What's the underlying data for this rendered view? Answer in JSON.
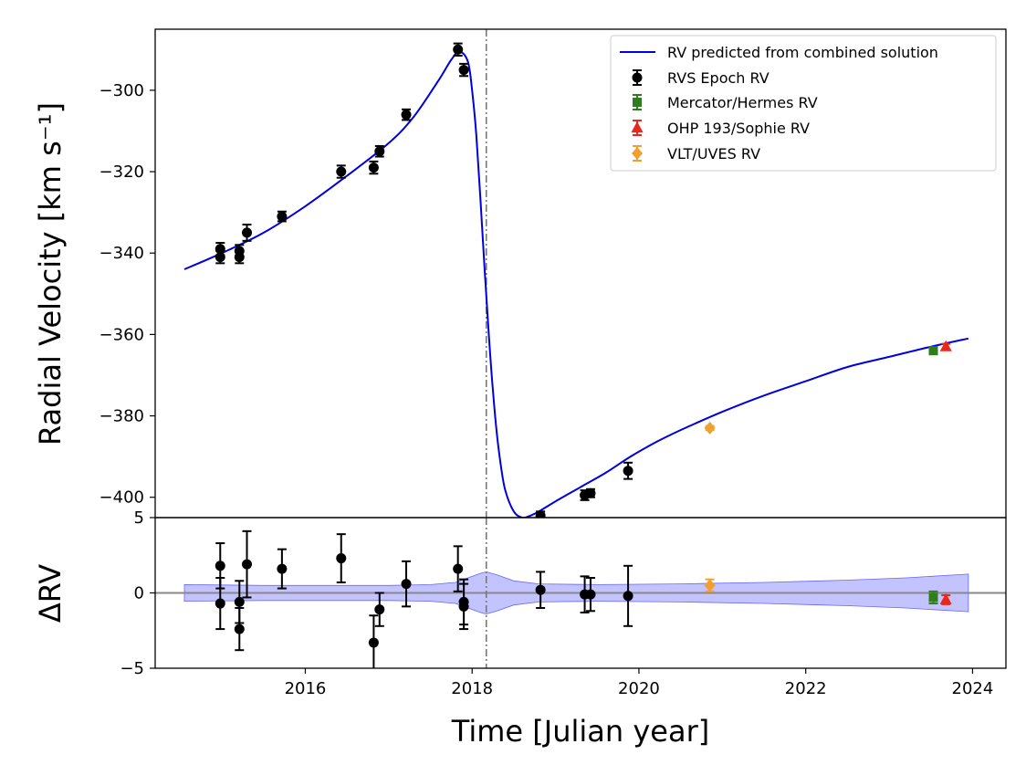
{
  "chart_data": [
    {
      "panel": "top",
      "type": "scatter",
      "ylabel": "Radial Velocity [km s⁻¹]",
      "xlim": [
        2014.2,
        2024.4
      ],
      "ylim": [
        -405,
        -285
      ],
      "yticks": [
        -300,
        -320,
        -340,
        -360,
        -380,
        -400
      ],
      "xticks": [
        2016,
        2018,
        2020,
        2022,
        2024
      ],
      "vline_x": 2018.17,
      "legend_position": "top-right",
      "legend": {
        "model": "RV predicted from combined solution",
        "rvs": "RVS Epoch RV",
        "hermes": "Mercator/Hermes RV",
        "sophie": "OHP 193/Sophie RV",
        "uves": "VLT/UVES RV"
      },
      "model_curve": {
        "name": "RV predicted from combined solution",
        "color": "#0000dd",
        "x": [
          2014.55,
          2015.0,
          2015.5,
          2016.0,
          2016.5,
          2017.0,
          2017.3,
          2017.6,
          2017.75,
          2017.85,
          2017.95,
          2018.0,
          2018.05,
          2018.1,
          2018.15,
          2018.2,
          2018.25,
          2018.3,
          2018.35,
          2018.4,
          2018.5,
          2018.6,
          2018.7,
          2018.8,
          2019.0,
          2019.3,
          2019.6,
          2019.9,
          2020.2,
          2020.5,
          2021.0,
          2021.5,
          2022.0,
          2022.5,
          2023.0,
          2023.5,
          2023.95
        ],
        "y": [
          -344,
          -340,
          -335,
          -328.5,
          -321,
          -313,
          -306.5,
          -297.5,
          -292.5,
          -290.5,
          -293,
          -300,
          -311,
          -327,
          -344,
          -360,
          -374,
          -385,
          -393,
          -398.5,
          -403.5,
          -405,
          -404.5,
          -403.5,
          -401,
          -397.5,
          -394,
          -390,
          -386.5,
          -383.5,
          -379,
          -375,
          -371.5,
          -368,
          -365.5,
          -363,
          -361
        ]
      },
      "series": [
        {
          "name": "RVS Epoch RV",
          "color": "#000000",
          "marker": "circle",
          "x": [
            2014.98,
            2014.98,
            2015.21,
            2015.21,
            2015.3,
            2015.72,
            2016.43,
            2016.82,
            2016.89,
            2017.21,
            2017.83,
            2017.9,
            2018.82,
            2019.35,
            2019.42,
            2019.87
          ],
          "y": [
            -339,
            -341,
            -339.5,
            -341,
            -335,
            -331,
            -320,
            -319,
            -315,
            -306,
            -290,
            -295,
            -404.5,
            -399.5,
            -399,
            -393.5
          ],
          "err": [
            1.5,
            1.5,
            1.5,
            1.5,
            2,
            1.2,
            1.5,
            1.5,
            1.3,
            1.3,
            1.5,
            1.5,
            1.0,
            1.2,
            1.0,
            2.0
          ]
        },
        {
          "name": "Mercator/Hermes RV",
          "color": "#2e7d1e",
          "marker": "square",
          "x": [
            2023.53
          ],
          "y": [
            -364
          ],
          "err": [
            0.8
          ]
        },
        {
          "name": "OHP 193/Sophie RV",
          "color": "#e8281c",
          "marker": "triangle",
          "x": [
            2023.68
          ],
          "y": [
            -363
          ],
          "err": [
            0.7
          ]
        },
        {
          "name": "VLT/UVES RV",
          "color": "#f0a030",
          "marker": "diamond",
          "x": [
            2020.85
          ],
          "y": [
            -383
          ],
          "err": [
            0.5
          ]
        }
      ]
    },
    {
      "panel": "bottom",
      "type": "scatter",
      "xlabel": "Time [Julian year]",
      "ylabel": "ΔRV",
      "xlim": [
        2014.2,
        2024.4
      ],
      "ylim": [
        -5,
        5
      ],
      "yticks": [
        5,
        0,
        -5
      ],
      "xticks": [
        2016,
        2018,
        2020,
        2022,
        2024
      ],
      "zero_line": true,
      "band": {
        "color": "#8888ff",
        "x": [
          2014.55,
          2015.5,
          2016.5,
          2017.0,
          2017.5,
          2017.8,
          2018.0,
          2018.1,
          2018.17,
          2018.3,
          2018.5,
          2018.8,
          2019.5,
          2020.5,
          2021.5,
          2022.5,
          2023.2,
          2023.95
        ],
        "upper": [
          0.55,
          0.5,
          0.5,
          0.5,
          0.55,
          0.7,
          1.1,
          1.3,
          1.4,
          1.2,
          0.8,
          0.6,
          0.55,
          0.6,
          0.7,
          0.85,
          1.0,
          1.25
        ],
        "lower": [
          -0.55,
          -0.5,
          -0.5,
          -0.5,
          -0.55,
          -0.7,
          -1.1,
          -1.3,
          -1.4,
          -1.2,
          -0.8,
          -0.6,
          -0.55,
          -0.6,
          -0.7,
          -0.85,
          -1.0,
          -1.25
        ]
      },
      "series": [
        {
          "name": "RVS Epoch RV",
          "color": "#000000",
          "marker": "circle",
          "x": [
            2014.98,
            2014.98,
            2015.21,
            2015.21,
            2015.3,
            2015.72,
            2016.43,
            2016.82,
            2016.89,
            2017.21,
            2017.83,
            2017.9,
            2017.9,
            2018.82,
            2019.35,
            2019.42,
            2019.87
          ],
          "y": [
            1.8,
            -0.7,
            -0.6,
            -2.4,
            1.9,
            1.6,
            2.3,
            -3.3,
            -1.1,
            0.6,
            1.6,
            -0.6,
            -0.9,
            0.2,
            -0.1,
            -0.1,
            -0.2
          ],
          "err": [
            1.5,
            1.7,
            1.4,
            1.4,
            2.2,
            1.3,
            1.6,
            1.8,
            1.1,
            1.5,
            1.5,
            1.5,
            1.5,
            1.2,
            1.2,
            1.1,
            2.0
          ]
        },
        {
          "name": "Mercator/Hermes RV",
          "color": "#2e7d1e",
          "marker": "square",
          "x": [
            2023.53
          ],
          "y": [
            -0.3
          ],
          "err": [
            0.4
          ]
        },
        {
          "name": "OHP 193/Sophie RV",
          "color": "#e8281c",
          "marker": "triangle",
          "x": [
            2023.68
          ],
          "y": [
            -0.45
          ],
          "err": [
            0.3
          ]
        },
        {
          "name": "VLT/UVES RV",
          "color": "#f0a030",
          "marker": "diamond",
          "x": [
            2020.85
          ],
          "y": [
            0.5
          ],
          "err": [
            0.4
          ]
        }
      ]
    }
  ]
}
